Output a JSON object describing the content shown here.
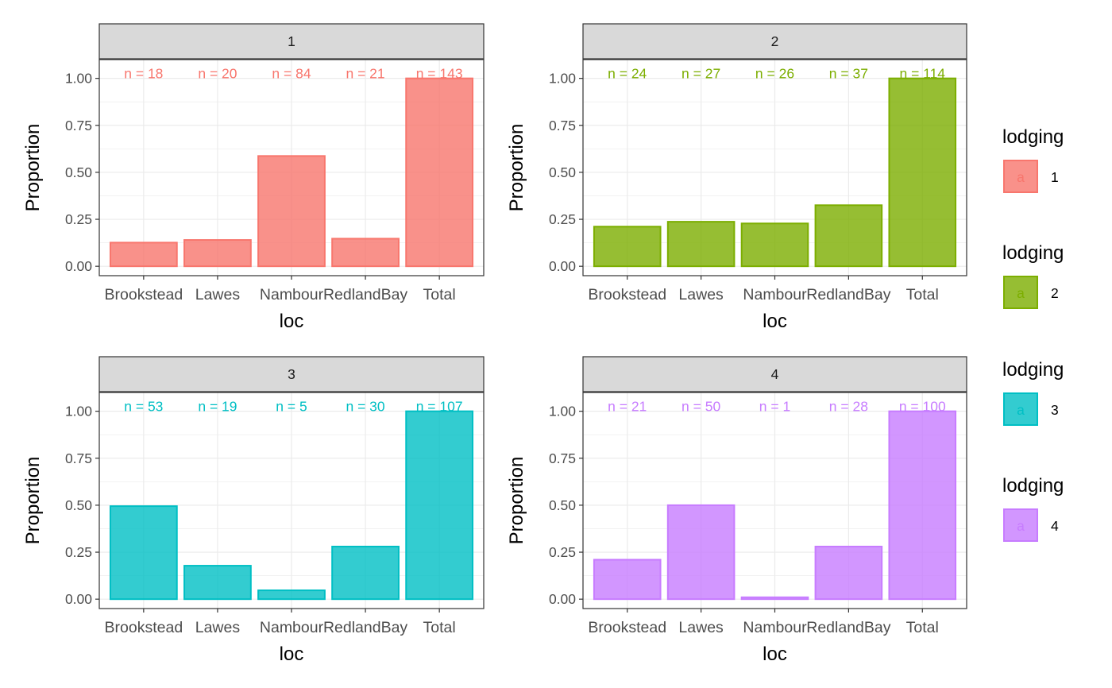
{
  "chart_data": {
    "type": "bar",
    "facets": [
      {
        "strip": "1",
        "color": "#F8766D",
        "categories": [
          "Brookstead",
          "Lawes",
          "Nambour",
          "RedlandBay",
          "Total"
        ],
        "values": [
          0.126,
          0.14,
          0.587,
          0.147,
          1.0
        ],
        "labels": [
          "n = 18",
          "n = 20",
          "n = 84",
          "n = 21",
          "n = 143"
        ]
      },
      {
        "strip": "2",
        "color": "#7CAE00",
        "categories": [
          "Brookstead",
          "Lawes",
          "Nambour",
          "RedlandBay",
          "Total"
        ],
        "values": [
          0.211,
          0.237,
          0.228,
          0.325,
          1.0
        ],
        "labels": [
          "n = 24",
          "n = 27",
          "n = 26",
          "n = 37",
          "n = 114"
        ]
      },
      {
        "strip": "3",
        "color": "#00BFC4",
        "categories": [
          "Brookstead",
          "Lawes",
          "Nambour",
          "RedlandBay",
          "Total"
        ],
        "values": [
          0.495,
          0.178,
          0.047,
          0.28,
          1.0
        ],
        "labels": [
          "n = 53",
          "n = 19",
          "n = 5",
          "n = 30",
          "n = 107"
        ]
      },
      {
        "strip": "4",
        "color": "#C77CFF",
        "categories": [
          "Brookstead",
          "Lawes",
          "Nambour",
          "RedlandBay",
          "Total"
        ],
        "values": [
          0.21,
          0.5,
          0.01,
          0.28,
          1.0
        ],
        "labels": [
          "n = 21",
          "n = 50",
          "n = 1",
          "n = 28",
          "n = 100"
        ]
      }
    ],
    "xlabel": "loc",
    "ylabel": "Proportion",
    "yticks": [
      0.0,
      0.25,
      0.5,
      0.75,
      1.0
    ],
    "ytick_labels": [
      "0.00",
      "0.25",
      "0.50",
      "0.75",
      "1.00"
    ],
    "ylim": [
      -0.05,
      1.1
    ],
    "grid": true,
    "legend": {
      "placement": "right",
      "groups": [
        {
          "title": "lodging",
          "key_text": "a",
          "label": "1",
          "color": "#F8766D"
        },
        {
          "title": "lodging",
          "key_text": "a",
          "label": "2",
          "color": "#7CAE00"
        },
        {
          "title": "lodging",
          "key_text": "a",
          "label": "3",
          "color": "#00BFC4"
        },
        {
          "title": "lodging",
          "key_text": "a",
          "label": "4",
          "color": "#C77CFF"
        }
      ]
    }
  }
}
